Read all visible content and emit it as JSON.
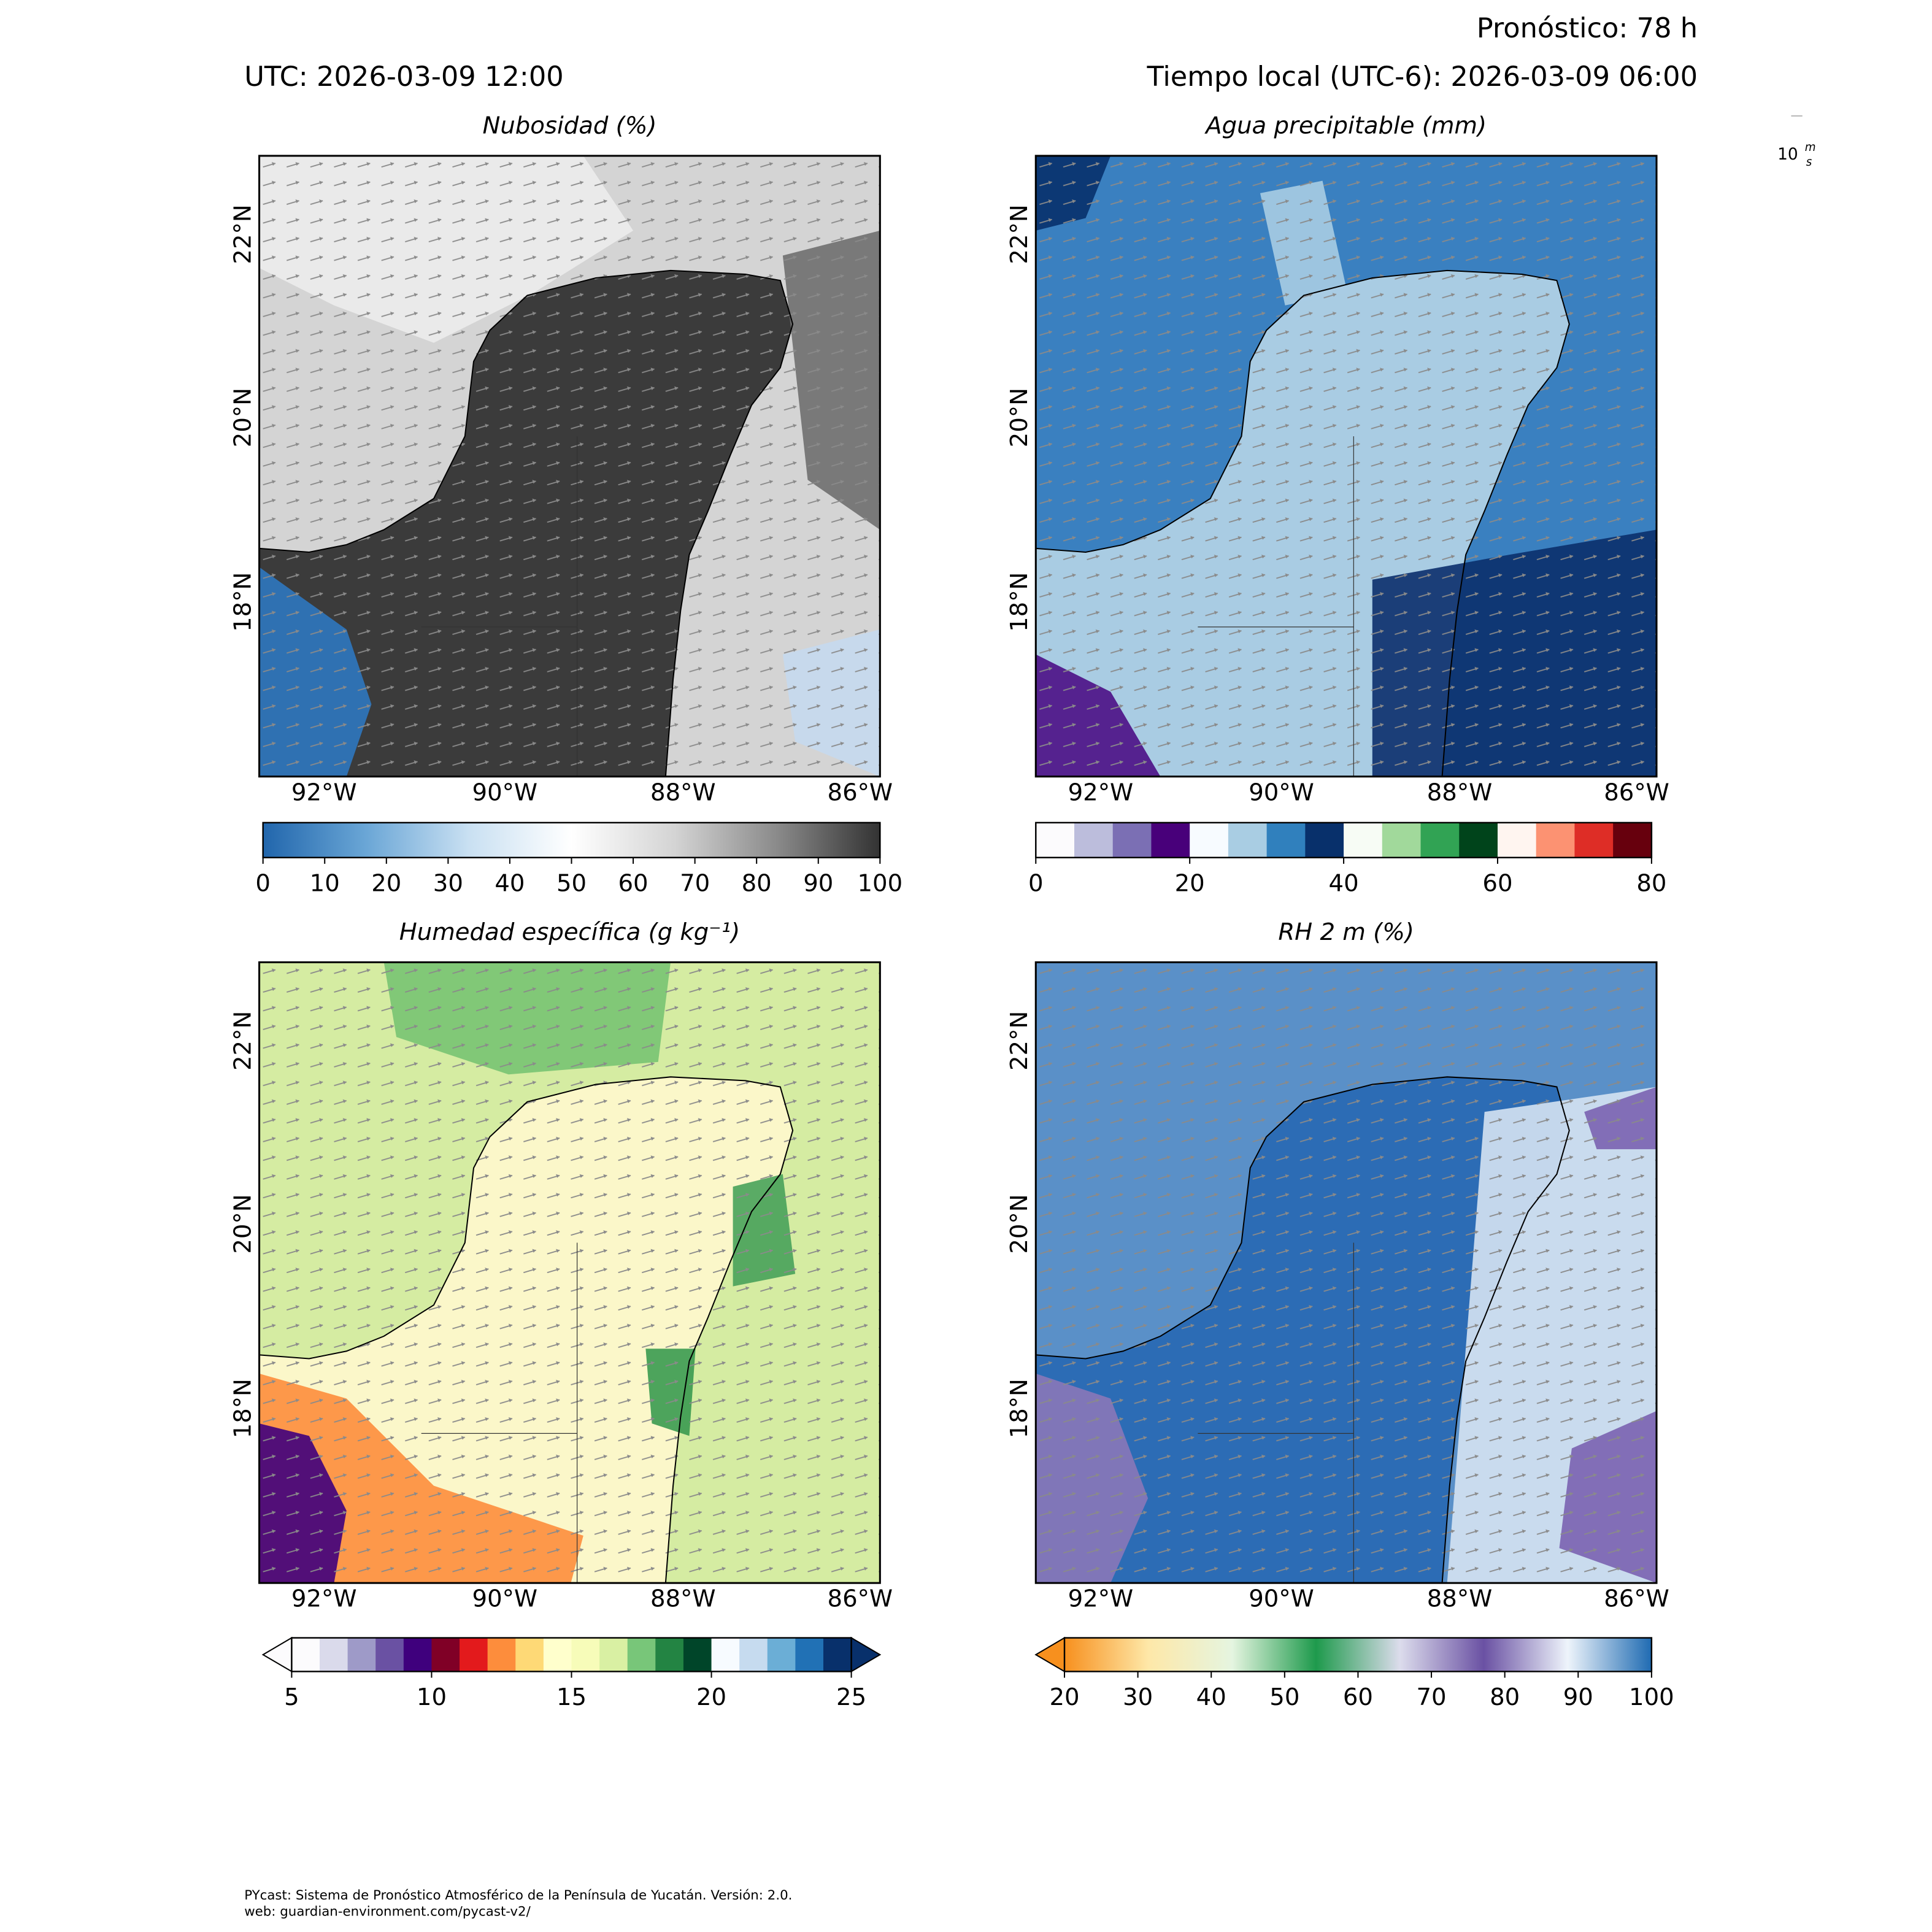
{
  "header": {
    "forecast": "Pronóstico: 78 h",
    "utc": "UTC:  2026-03-09 12:00",
    "local": "Tiempo local (UTC-6): 2026-03-09 06:00"
  },
  "wind_key": {
    "speed": "10",
    "unit_top": "m",
    "unit_bottom": "s"
  },
  "panels": [
    {
      "title": "Nubosidad (%)",
      "lon_labels": [
        "92°W",
        "90°W",
        "88°W",
        "86°W"
      ],
      "lat_labels": [
        "22°N",
        "20°N",
        "18°N"
      ],
      "colorbar": {
        "lim": [
          0,
          100
        ],
        "ticks": [
          0,
          10,
          20,
          30,
          40,
          50,
          60,
          70,
          80,
          90,
          100
        ],
        "style": "gradient",
        "colors": [
          "#2166ac",
          "#6aa6d6",
          "#c9e0f2",
          "#ffffff",
          "#d4d4d4",
          "#8a8a8a",
          "#333333"
        ]
      }
    },
    {
      "title": "Agua precipitable (mm)",
      "lon_labels": [
        "92°W",
        "90°W",
        "88°W",
        "86°W"
      ],
      "lat_labels": [
        "22°N",
        "20°N",
        "18°N"
      ],
      "colorbar": {
        "lim": [
          0,
          80
        ],
        "ticks": [
          0,
          20,
          40,
          60,
          80
        ],
        "style": "discrete",
        "colors": [
          "#fcfbfd",
          "#bcbddc",
          "#7b6fb4",
          "#48007a",
          "#f7fbff",
          "#a9cde3",
          "#3080bd",
          "#08306b",
          "#f7fcf5",
          "#a1d99b",
          "#31a354",
          "#00441b",
          "#fff5f0",
          "#fc9272",
          "#de2d26",
          "#67000d"
        ]
      }
    },
    {
      "title": "Humedad específica (g kg⁻¹)",
      "lon_labels": [
        "92°W",
        "90°W",
        "88°W",
        "86°W"
      ],
      "lat_labels": [
        "22°N",
        "20°N",
        "18°N"
      ],
      "colorbar": {
        "lim": [
          5,
          25
        ],
        "ticks": [
          5,
          10,
          15,
          20,
          25
        ],
        "style": "discrete",
        "extend": "both",
        "colors": [
          "#fcfbfd",
          "#dadaeb",
          "#9e9ac8",
          "#6a51a3",
          "#3f007d",
          "#800026",
          "#e31a1c",
          "#fd8d3c",
          "#fed976",
          "#ffffcc",
          "#f7fcb9",
          "#d9f0a3",
          "#78c679",
          "#238443",
          "#004529",
          "#f7fbff",
          "#c6dbef",
          "#6baed6",
          "#2171b5",
          "#08306b"
        ]
      }
    },
    {
      "title": "RH 2 m (%)",
      "lon_labels": [
        "92°W",
        "90°W",
        "88°W",
        "86°W"
      ],
      "lat_labels": [
        "22°N",
        "20°N",
        "18°N"
      ],
      "colorbar": {
        "lim": [
          20,
          100
        ],
        "ticks": [
          20,
          30,
          40,
          50,
          60,
          70,
          80,
          90,
          100
        ],
        "style": "gradient",
        "extend": "min",
        "colors": [
          "#f7901e",
          "#fee8a8",
          "#e5f5e0",
          "#1e9a4c",
          "#dcdcec",
          "#6a51a3",
          "#eef4fb",
          "#1f6bb2"
        ]
      }
    }
  ],
  "footer": [
    "PYcast: Sistema de Pronóstico Atmosférico de la Península de Yucatán. Versión: 2.0.",
    "web: guardian-environment.com/pycast-v2/"
  ]
}
